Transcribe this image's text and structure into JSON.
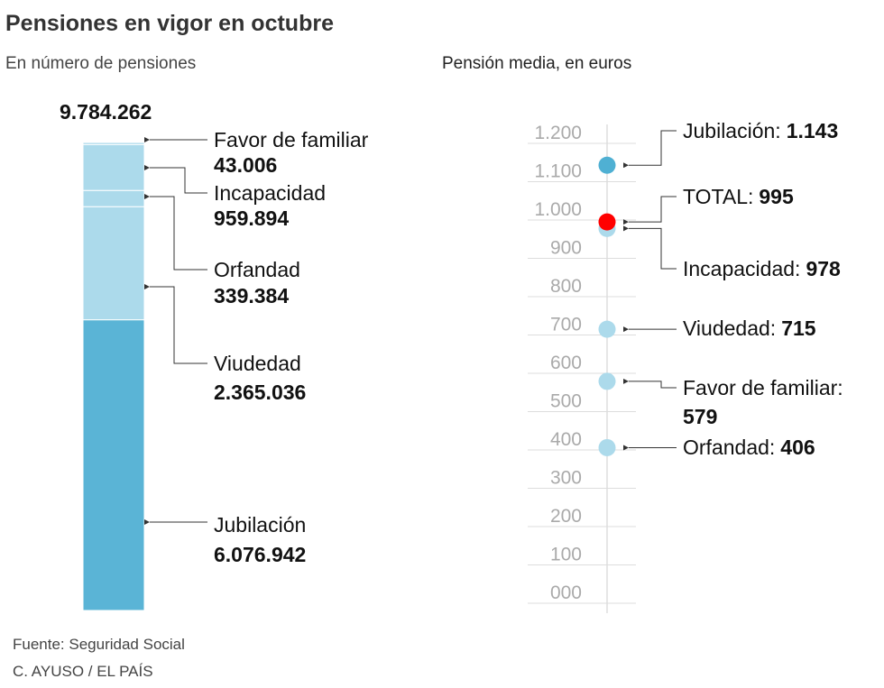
{
  "title": "Pensiones en vigor en octubre",
  "source": "Fuente: Seguridad Social",
  "credit": "C. AYUSO / EL PAÍS",
  "chart_data": [
    {
      "type": "stacked_bar",
      "subtitle": "En número de pensiones",
      "total": {
        "value": 9784262,
        "label": "9.784.262"
      },
      "categories": [
        "Jubilación",
        "Viudedad",
        "Orfandad",
        "Incapacidad",
        "Favor de familiar"
      ],
      "values": [
        6076942,
        2365036,
        339384,
        959894,
        43006
      ],
      "value_labels": [
        "6.076.942",
        "2.365.036",
        "339.384",
        "959.894",
        "43.006"
      ],
      "colors": [
        "#5ab4d6",
        "#acdaeb",
        "#acdaeb",
        "#acdaeb",
        "#acdaeb"
      ]
    },
    {
      "type": "dot",
      "subtitle": "Pensión media, en euros",
      "categories": [
        "Jubilación:",
        "TOTAL:",
        "Incapacidad:",
        "Viudedad:",
        "Favor de familiar:",
        "Orfandad:"
      ],
      "values": [
        1143,
        995,
        978,
        715,
        579,
        406
      ],
      "value_labels": [
        "1.143",
        "995",
        "978",
        "715",
        "579",
        "406"
      ],
      "colors": [
        "#4fb0d3",
        "#ff0000",
        "#acdaeb",
        "#acdaeb",
        "#acdaeb",
        "#acdaeb"
      ],
      "ylim": [
        0,
        1200
      ],
      "yticks": [
        {
          "value": 0,
          "label": "000"
        },
        100,
        200,
        300,
        400,
        500,
        600,
        700,
        800,
        900,
        {
          "value": 1000,
          "label": "1.000"
        },
        {
          "value": 1100,
          "label": "1.100"
        },
        {
          "value": 1200,
          "label": "1.200"
        }
      ],
      "grid": true
    }
  ]
}
